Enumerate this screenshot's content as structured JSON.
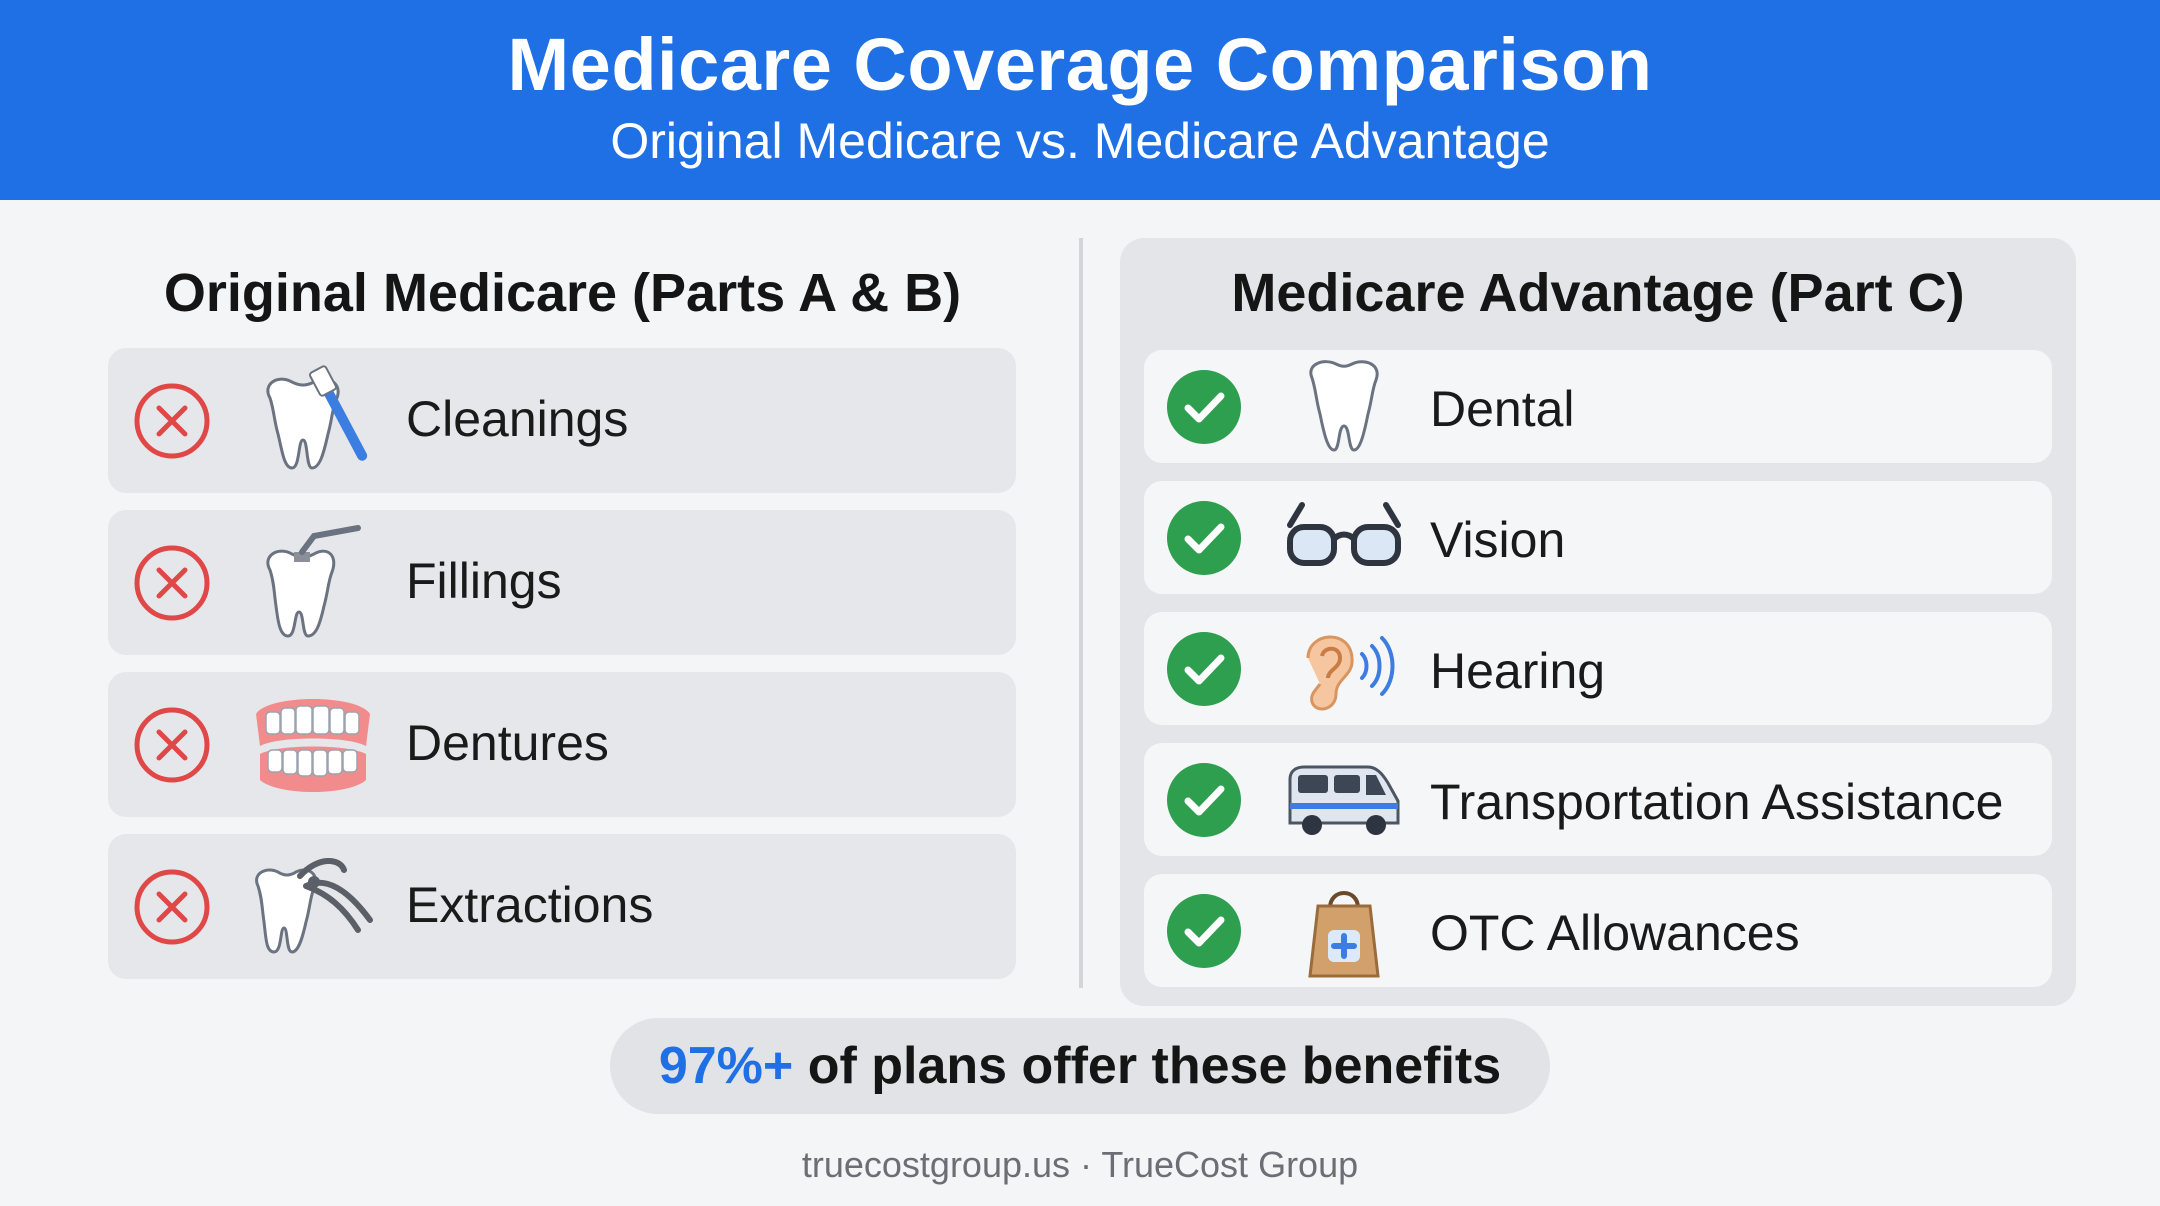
{
  "header": {
    "title": "Medicare Coverage Comparison",
    "subtitle": "Original Medicare vs. Medicare Advantage"
  },
  "left_column": {
    "title": "Original Medicare (Parts A & B)",
    "status": "not-covered",
    "items": [
      {
        "label": "Cleanings",
        "icon": "tooth-toothbrush-icon"
      },
      {
        "label": "Fillings",
        "icon": "tooth-filling-icon"
      },
      {
        "label": "Dentures",
        "icon": "dentures-icon"
      },
      {
        "label": "Extractions",
        "icon": "tooth-extraction-icon"
      }
    ]
  },
  "right_column": {
    "title": "Medicare Advantage (Part C)",
    "status": "covered",
    "items": [
      {
        "label": "Dental",
        "icon": "tooth-icon"
      },
      {
        "label": "Vision",
        "icon": "glasses-icon"
      },
      {
        "label": "Hearing",
        "icon": "ear-icon"
      },
      {
        "label": "Transportation Assistance",
        "icon": "van-icon"
      },
      {
        "label": "OTC Allowances",
        "icon": "medical-bag-icon"
      }
    ]
  },
  "stat": {
    "value": "97%+",
    "text": " of plans offer these benefits"
  },
  "footer": {
    "text": "truecostgroup.us · TrueCost Group"
  },
  "colors": {
    "header_blue": "#1f6fe5",
    "not_covered_red": "#e04848",
    "covered_green": "#2e9e4f"
  }
}
